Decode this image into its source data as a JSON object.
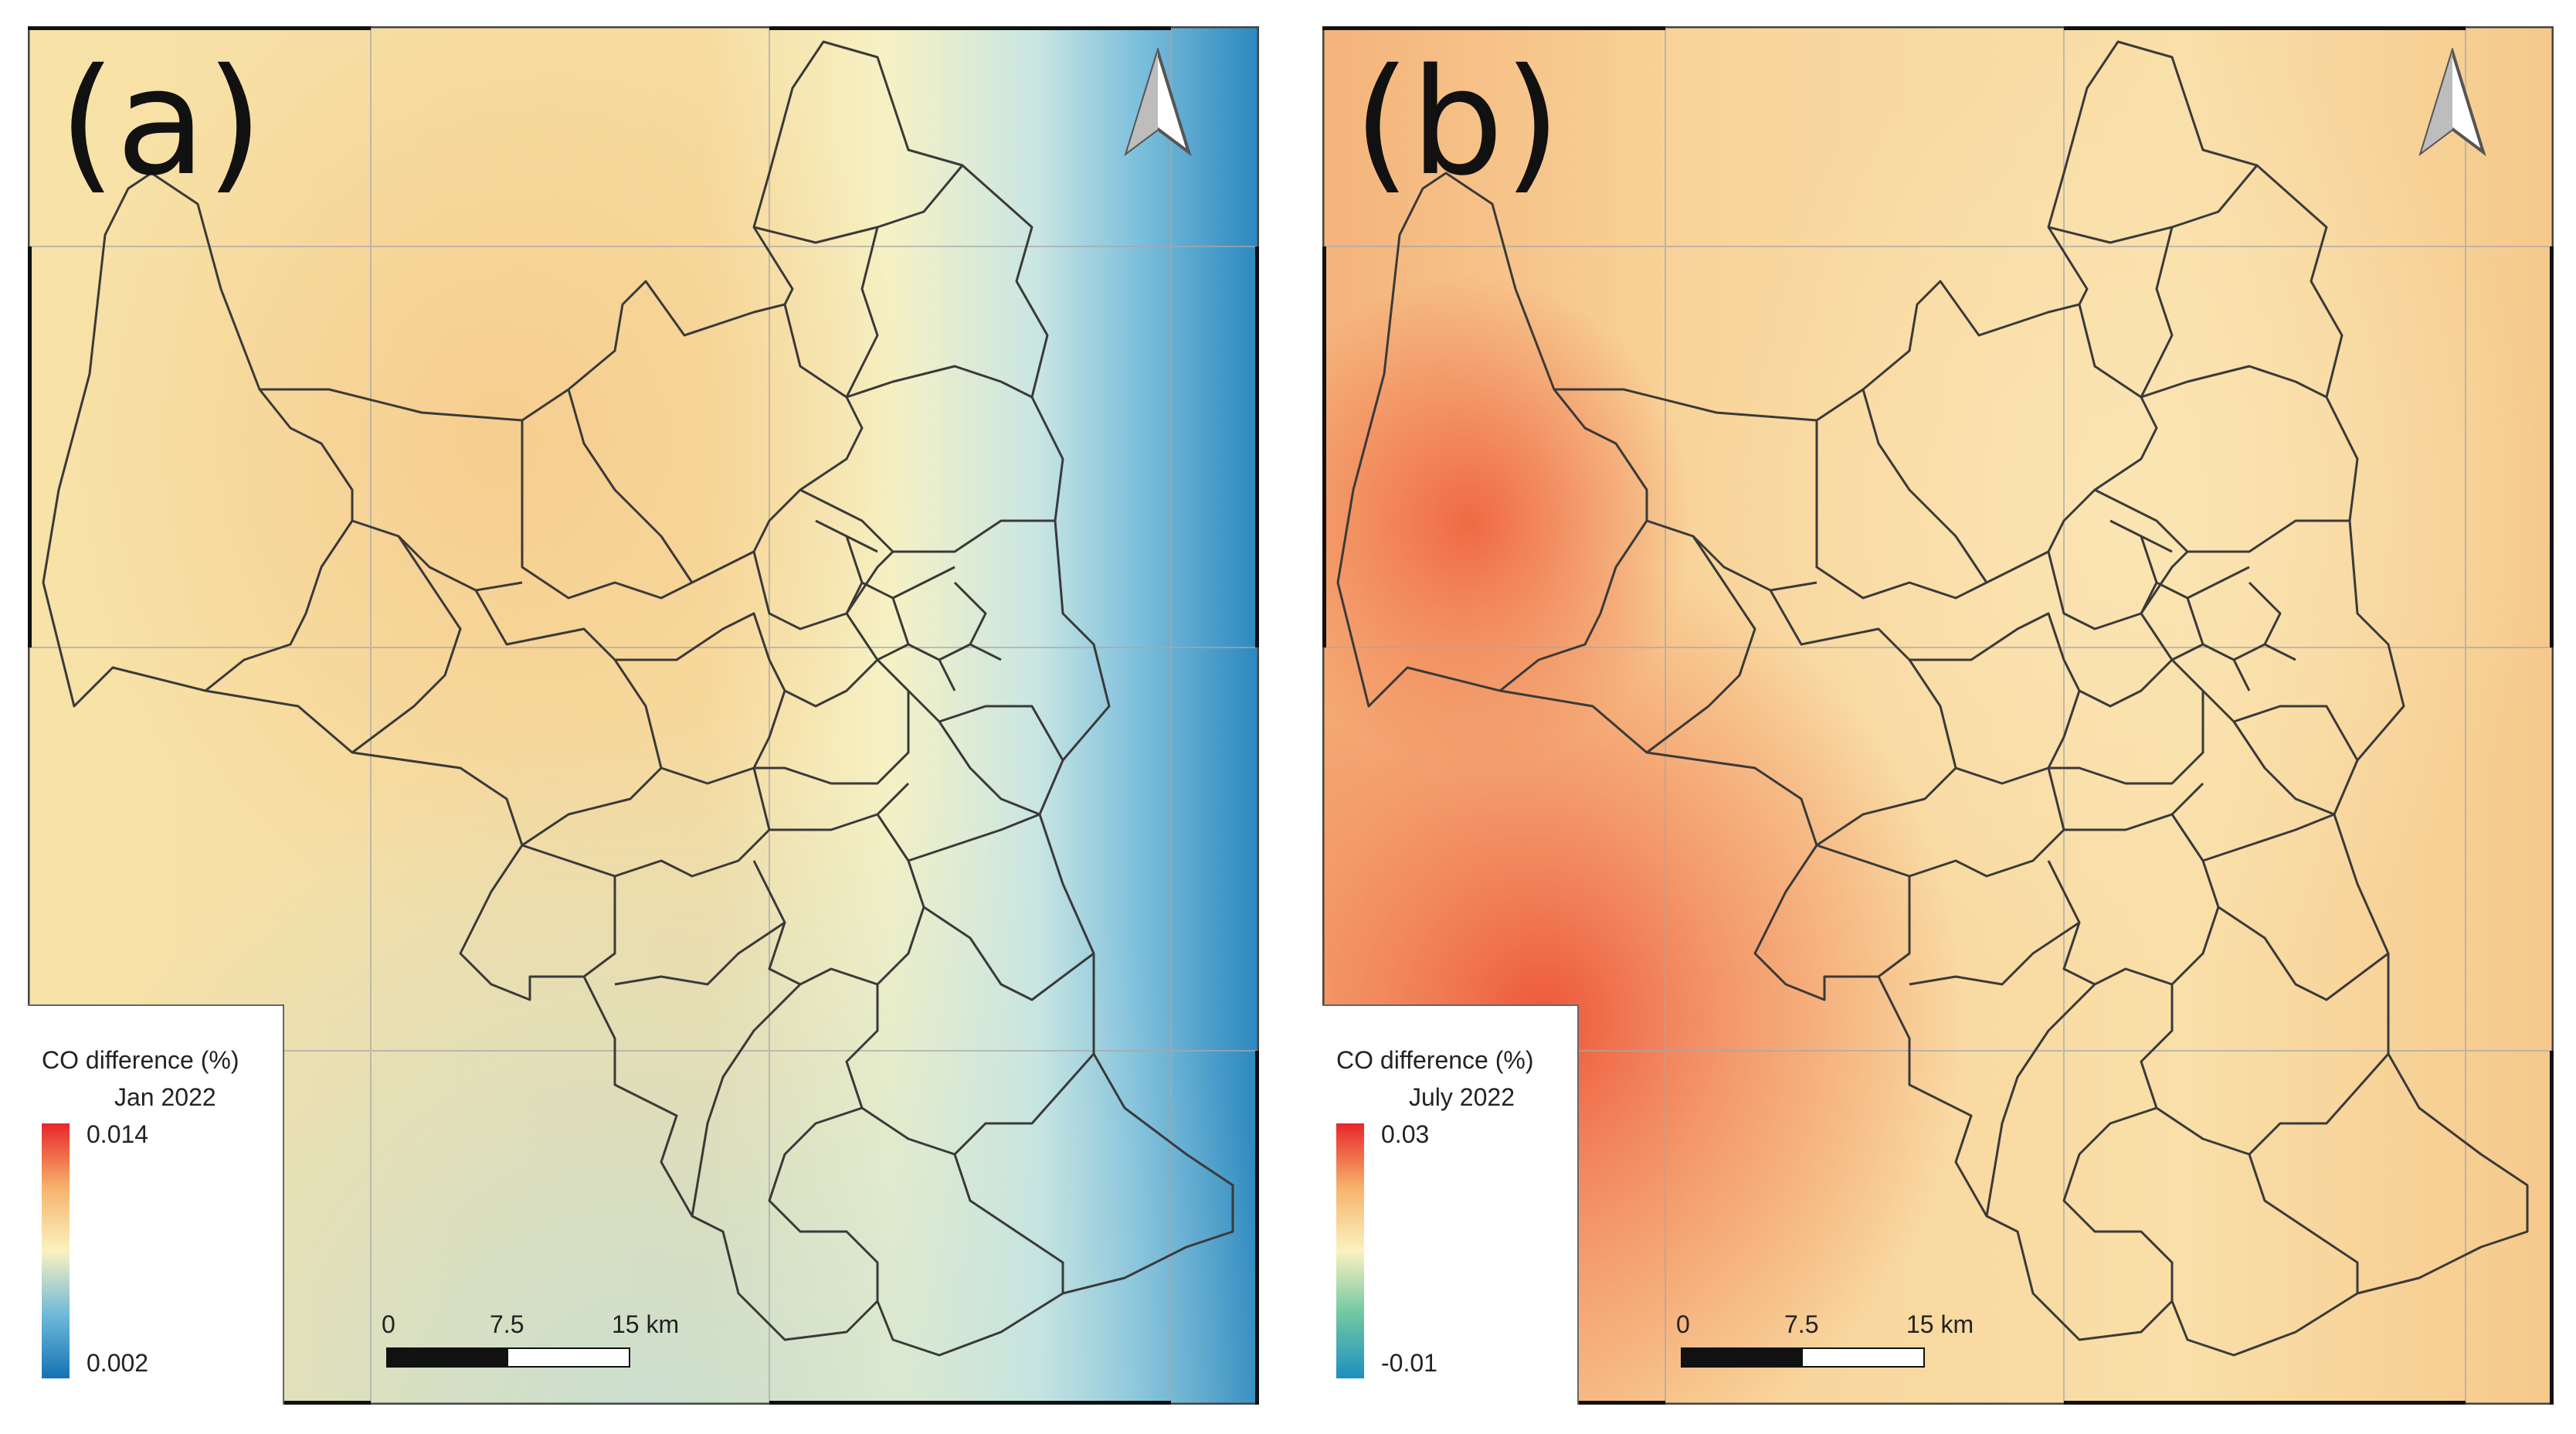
{
  "panels": [
    {
      "label": "(a)",
      "legend": {
        "title": "CO difference (%)",
        "period": "Jan 2022",
        "max": "0.014",
        "min": "0.002",
        "colors": [
          "#e8262a",
          "#f6b26b",
          "#fbf2bf",
          "#6fb9da",
          "#1473b5"
        ]
      },
      "scalebar": {
        "zero": "0",
        "mid": "7.5",
        "end": "15 km"
      },
      "colors": {
        "base": "#f8dfa4",
        "east": "#3f98c9"
      }
    },
    {
      "label": "(b)",
      "legend": {
        "title": "CO difference (%)",
        "period": "July 2022",
        "max": "0.03",
        "min": "-0.01",
        "colors": [
          "#e8262a",
          "#f6b26b",
          "#fbf2bf",
          "#6fc7a3",
          "#1e8fc0"
        ]
      },
      "scalebar": {
        "zero": "0",
        "mid": "7.5",
        "end": "15 km"
      },
      "colors": {
        "base": "#f9d79e",
        "hotspot": "#ef5a38"
      }
    }
  ]
}
